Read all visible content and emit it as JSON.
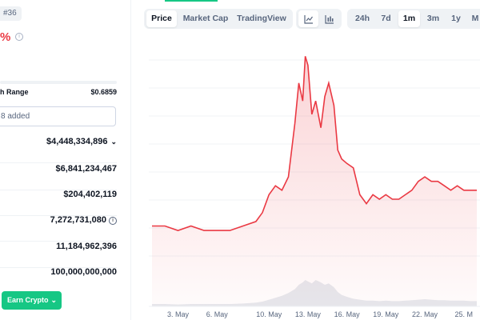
{
  "header": {
    "rank": "#36",
    "change_pct": "%"
  },
  "left": {
    "range_label": "h Range",
    "range_high": "$0.6859",
    "watchlist_text": "8 added",
    "stats": [
      {
        "value": "$4,448,334,896",
        "has_chevron": true
      },
      {
        "value": "$6,841,234,467"
      },
      {
        "value": "$204,402,119"
      },
      {
        "value": "7,272,731,080",
        "has_info": true
      },
      {
        "value": "11,184,962,396"
      },
      {
        "value": "100,000,000,000"
      }
    ],
    "earn_button": "Earn Crypto"
  },
  "toolbar": {
    "view_tabs": [
      "Price",
      "Market Cap",
      "TradingView"
    ],
    "active_view": "Price",
    "chart_type_icons": [
      "line-chart-icon",
      "candlestick-chart-icon"
    ],
    "ranges": [
      "24h",
      "7d",
      "1m",
      "3m",
      "1y",
      "M"
    ],
    "active_range": "1m"
  },
  "colors": {
    "accent_green": "#16c784",
    "price_red": "#ea3943"
  },
  "chart_data": {
    "type": "area",
    "x_tick_labels": [
      "3. May",
      "6. May",
      "10. May",
      "13. May",
      "16. May",
      "19. May",
      "22. May",
      "25. M"
    ],
    "x_day": [
      1,
      2,
      3,
      4,
      5,
      6,
      7,
      8,
      9,
      9.5,
      10,
      10.5,
      11,
      11.5,
      12,
      12.3,
      12.6,
      12.8,
      13,
      13.3,
      13.6,
      14,
      14.3,
      14.6,
      15,
      15.3,
      15.6,
      16,
      16.5,
      17,
      17.5,
      18,
      18.5,
      19,
      19.5,
      20,
      20.5,
      21,
      21.5,
      22,
      22.5,
      23,
      23.5,
      24,
      24.5,
      25,
      25.5,
      26
    ],
    "price": [
      0.3,
      0.3,
      0.29,
      0.3,
      0.29,
      0.29,
      0.29,
      0.3,
      0.31,
      0.33,
      0.37,
      0.39,
      0.38,
      0.41,
      0.53,
      0.62,
      0.58,
      0.68,
      0.66,
      0.55,
      0.58,
      0.52,
      0.59,
      0.62,
      0.57,
      0.47,
      0.45,
      0.44,
      0.43,
      0.37,
      0.35,
      0.37,
      0.36,
      0.37,
      0.36,
      0.36,
      0.37,
      0.38,
      0.4,
      0.41,
      0.4,
      0.4,
      0.39,
      0.38,
      0.39,
      0.38,
      0.38,
      0.38
    ],
    "volume": [
      0.05,
      0.05,
      0.04,
      0.05,
      0.05,
      0.05,
      0.05,
      0.06,
      0.08,
      0.1,
      0.14,
      0.18,
      0.22,
      0.28,
      0.36,
      0.45,
      0.5,
      0.55,
      0.52,
      0.48,
      0.55,
      0.5,
      0.45,
      0.48,
      0.4,
      0.3,
      0.24,
      0.2,
      0.16,
      0.14,
      0.12,
      0.12,
      0.11,
      0.12,
      0.11,
      0.11,
      0.12,
      0.13,
      0.14,
      0.15,
      0.14,
      0.13,
      0.13,
      0.12,
      0.12,
      0.12,
      0.11,
      0.11
    ],
    "ylim": [
      0.12,
      0.72
    ],
    "xlim": [
      1,
      26
    ],
    "grid": true
  }
}
